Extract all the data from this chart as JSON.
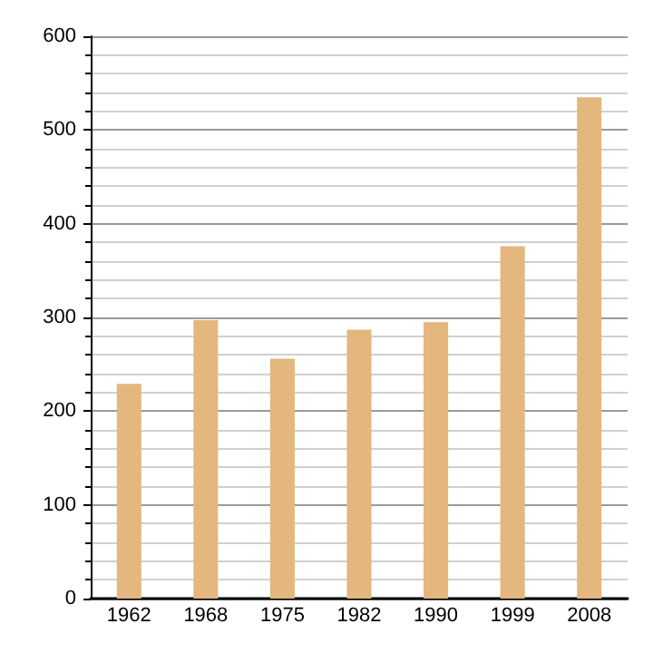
{
  "chart_data": {
    "type": "bar",
    "categories": [
      "1962",
      "1968",
      "1975",
      "1982",
      "1990",
      "1999",
      "2008"
    ],
    "values": [
      229,
      297,
      256,
      287,
      295,
      376,
      535
    ],
    "color": "#e3b77e",
    "ylim": [
      0,
      600
    ],
    "yticks": [
      0,
      100,
      200,
      300,
      400,
      500,
      600
    ],
    "grid": true
  }
}
